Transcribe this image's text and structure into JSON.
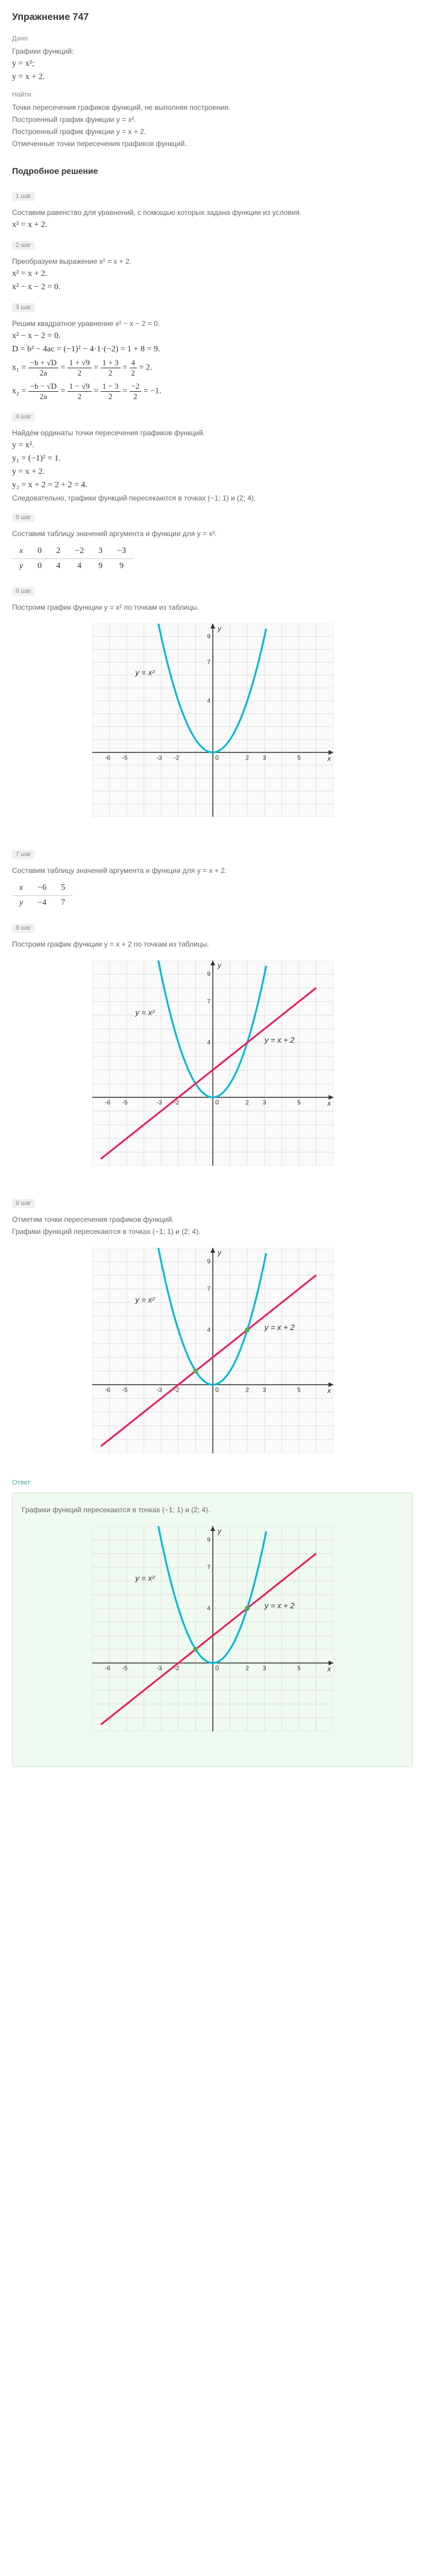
{
  "title": "Упражнение 747",
  "given_label": "Дано:",
  "given_desc": "Графики функций:",
  "eq1": "y = x²;",
  "eq2": "y = x + 2.",
  "find_label": "Найти:",
  "find1": "Точки пересечения графиков функций, не выполняя построения.",
  "find2": "Построенный график функции y = x².",
  "find3": "Построенный график функции y = x + 2.",
  "find4": "Отмеченные точки пересечения графиков функций.",
  "solution_header": "Подробное решение",
  "step1_badge": "1 шаг",
  "step1_desc": "Составим равенство для уравнений, с помощью которых задана функции из условия.",
  "step1_eq": "x² = x + 2.",
  "step2_badge": "2 шаг",
  "step2_desc": "Преобразуем выражение x² = x + 2.",
  "step2_eq1": "x² = x + 2.",
  "step2_eq2": "x² − x − 2 = 0.",
  "step3_badge": "3 шаг",
  "step3_desc": "Решим квадратное уравнение x² − x − 2 = 0.",
  "step3_eq1": "x² − x − 2 = 0.",
  "step3_eq2": "D = b² − 4ac = (−1)² − 4·1·(−2) = 1 + 8 = 9.",
  "step3_x1_lhs": "x₁ = ",
  "step3_x2_lhs": "x₂ = ",
  "step4_badge": "4 шаг",
  "step4_desc": "Найдём ординаты точки пересечения графиков функций.",
  "step4_eq1": "y = x².",
  "step4_eq2": "y₁ = (−1)² = 1.",
  "step4_eq3": "y = x + 2.",
  "step4_eq4": "y₂ = x + 2 = 2 + 2 = 4.",
  "step4_concl": "Следовательно, графики функций пересекаются в точках (−1; 1) и (2; 4).",
  "step5_badge": "5 шаг",
  "step5_desc": "Составим таблицу значений аргумента и функции для y = x².",
  "table1": {
    "x": [
      "0",
      "2",
      "−2",
      "3",
      "−3"
    ],
    "y": [
      "0",
      "4",
      "4",
      "9",
      "9"
    ]
  },
  "step6_badge": "6 шаг",
  "step6_desc": "Построим график функции y = x² по точкам из таблицы.",
  "step7_badge": "7 шаг",
  "step7_desc": "Составим таблицу значений аргумента и функции для y = x + 2.",
  "table2": {
    "x": [
      "−6",
      "5"
    ],
    "y": [
      "−4",
      "7"
    ]
  },
  "step8_badge": "8 шаг",
  "step8_desc": "Построим график функции y = x + 2 по точкам из таблицы.",
  "step9_badge": "9 шаг",
  "step9_desc": "Отметим точки пересечения графиков функций.",
  "step9_concl": "Графики функций пересекаются в точках (−1; 1) и (2; 4).",
  "answer_label": "Ответ:",
  "answer_text": "Графики функций пересекаются в точках (−1; 1) и (2; 4).",
  "chart": {
    "grid_color": "#e0e0e0",
    "axis_color": "#333",
    "parabola_color": "#00b8d4",
    "line_color": "#e91e63",
    "point_color": "#4caf50",
    "label_y_x2": "y = x²",
    "label_y_line": "y = x + 2",
    "axis_x": "x",
    "axis_y": "y",
    "y_ticks": [
      4,
      7,
      9
    ],
    "x_ticks_neg": [
      -6,
      -5,
      -3,
      -2
    ],
    "x_ticks_pos": [
      2,
      3,
      5
    ]
  }
}
